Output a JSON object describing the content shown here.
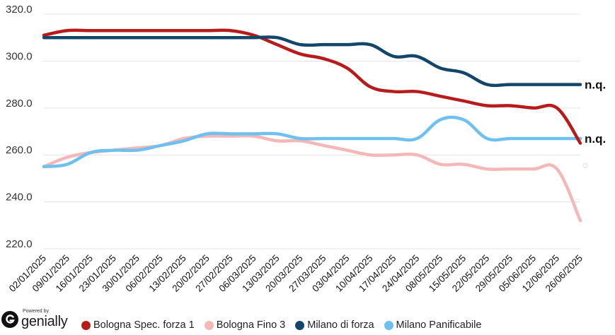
{
  "chart_data": {
    "type": "line",
    "title": "",
    "xlabel": "",
    "ylabel": "",
    "ylim": [
      220,
      320
    ],
    "yticks": [
      "220.0",
      "240.0",
      "260.0",
      "280.0",
      "300.0",
      "320.0"
    ],
    "grid": true,
    "legend_position": "bottom",
    "categories": [
      "02/01/2025",
      "09/01/2025",
      "16/01/2025",
      "23/01/2025",
      "30/01/2025",
      "06/02/2025",
      "13/02/2025",
      "20/02/2025",
      "27/02/2025",
      "06/03/2025",
      "13/03/2025",
      "20/03/2025",
      "27/03/2025",
      "03/04/2025",
      "10/04/2025",
      "17/04/2025",
      "24/04/2025",
      "08/05/2025",
      "15/05/2025",
      "22/05/2025",
      "29/05/2025",
      "05/06/2025",
      "12/06/2025",
      "26/06/2025"
    ],
    "series": [
      {
        "name": "Bologna Spec. forza 1",
        "color": "#b71c1c",
        "values": [
          311,
          313,
          313,
          313,
          313,
          313,
          313,
          313,
          313,
          311,
          307,
          303,
          301,
          297,
          289,
          287,
          287,
          285,
          283,
          281,
          281,
          280,
          280,
          265
        ]
      },
      {
        "name": "Bologna Fino 3",
        "color": "#f4b8b8",
        "values": [
          255,
          259,
          261,
          262,
          263,
          264,
          267,
          268,
          268,
          268,
          266,
          266,
          264,
          262,
          260,
          260,
          260,
          256,
          256,
          254,
          254,
          254,
          254,
          232
        ]
      },
      {
        "name": "Milano di forza",
        "color": "#13466b",
        "values": [
          310,
          310,
          310,
          310,
          310,
          310,
          310,
          310,
          310,
          310,
          310,
          307,
          307,
          307,
          307,
          302,
          302,
          297,
          295,
          290,
          290,
          290,
          290,
          290
        ]
      },
      {
        "name": "Milano Panificabile",
        "color": "#6ec1ef",
        "values": [
          255,
          256,
          261,
          262,
          262,
          264,
          266,
          269,
          269,
          269,
          269,
          267,
          267,
          267,
          267,
          267,
          267,
          275,
          275,
          267,
          267,
          267,
          267,
          267
        ]
      }
    ],
    "end_labels": [
      "n.q.",
      "n.q."
    ]
  },
  "branding": {
    "powered_by": "Powered by",
    "name": "genially"
  }
}
